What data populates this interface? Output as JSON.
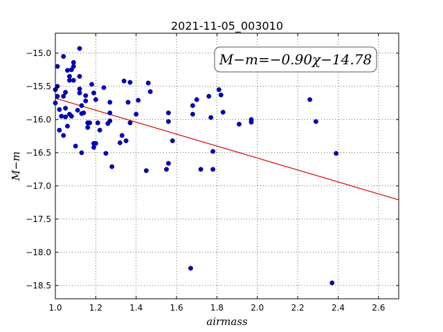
{
  "chart_data": {
    "type": "scatter",
    "title": "2021-11-05_003010",
    "xlabel": "airmass",
    "ylabel": "M−m",
    "xlim": [
      1.0,
      2.7
    ],
    "ylim": [
      -18.7,
      -14.7
    ],
    "y_inverted": true,
    "grid": true,
    "grid_style": "dotted",
    "xticks": [
      1.0,
      1.2,
      1.4,
      1.6,
      1.8,
      2.0,
      2.2,
      2.4,
      2.6
    ],
    "xtick_labels": [
      "1.0",
      "1.2",
      "1.4",
      "1.6",
      "1.8",
      "2.0",
      "2.2",
      "2.4",
      "2.6"
    ],
    "yticks": [
      -15.0,
      -15.5,
      -16.0,
      -16.5,
      -17.0,
      -17.5,
      -18.0,
      -18.5
    ],
    "ytick_labels": [
      "−15.0",
      "−15.5",
      "−16.0",
      "−16.5",
      "−17.0",
      "−17.5",
      "−18.0",
      "−18.5"
    ],
    "annotation": "M−m=−0.90χ−14.78",
    "colors": {
      "points": "#0000cc",
      "fit_line": "#dd0000"
    },
    "fit_line": {
      "slope": -0.9,
      "intercept": -14.78
    },
    "points": [
      [
        1.0,
        -15.55
      ],
      [
        1.0,
        -15.75
      ],
      [
        1.01,
        -15.2
      ],
      [
        1.01,
        -15.5
      ],
      [
        1.01,
        -15.65
      ],
      [
        1.02,
        -15.85
      ],
      [
        1.02,
        -16.16
      ],
      [
        1.03,
        -15.95
      ],
      [
        1.04,
        -15.65
      ],
      [
        1.04,
        -16.24
      ],
      [
        1.04,
        -15.05
      ],
      [
        1.05,
        -15.83
      ],
      [
        1.05,
        -15.96
      ],
      [
        1.05,
        -15.59
      ],
      [
        1.06,
        -16.1
      ],
      [
        1.06,
        -15.26
      ],
      [
        1.07,
        -15.35
      ],
      [
        1.07,
        -15.41
      ],
      [
        1.07,
        -15.92
      ],
      [
        1.08,
        -15.25
      ],
      [
        1.08,
        -15.95
      ],
      [
        1.09,
        -15.14
      ],
      [
        1.09,
        -15.2
      ],
      [
        1.09,
        -15.41
      ],
      [
        1.1,
        -16.4
      ],
      [
        1.11,
        -15.86
      ],
      [
        1.12,
        -14.93
      ],
      [
        1.12,
        -15.35
      ],
      [
        1.12,
        -15.54
      ],
      [
        1.12,
        -15.6
      ],
      [
        1.13,
        -15.79
      ],
      [
        1.13,
        -15.91
      ],
      [
        1.13,
        -16.5
      ],
      [
        1.14,
        -15.9
      ],
      [
        1.15,
        -15.64
      ],
      [
        1.15,
        -15.72
      ],
      [
        1.16,
        -16.05
      ],
      [
        1.16,
        -16.12
      ],
      [
        1.17,
        -16.05
      ],
      [
        1.18,
        -15.47
      ],
      [
        1.19,
        -16.36
      ],
      [
        1.19,
        -16.42
      ],
      [
        1.19,
        -15.6
      ],
      [
        1.2,
        -16.36
      ],
      [
        1.2,
        -15.7
      ],
      [
        1.21,
        -16.05
      ],
      [
        1.22,
        -16.16
      ],
      [
        1.24,
        -15.52
      ],
      [
        1.25,
        -16.51
      ],
      [
        1.26,
        -16.06
      ],
      [
        1.27,
        -15.9
      ],
      [
        1.27,
        -16.02
      ],
      [
        1.27,
        -15.74
      ],
      [
        1.28,
        -16.71
      ],
      [
        1.32,
        -16.35
      ],
      [
        1.33,
        -16.24
      ],
      [
        1.34,
        -15.42
      ],
      [
        1.35,
        -16.32
      ],
      [
        1.36,
        -15.74
      ],
      [
        1.37,
        -16.05
      ],
      [
        1.37,
        -15.44
      ],
      [
        1.4,
        -15.92
      ],
      [
        1.41,
        -15.71
      ],
      [
        1.45,
        -16.77
      ],
      [
        1.46,
        -15.45
      ],
      [
        1.47,
        -15.58
      ],
      [
        1.55,
        -16.75
      ],
      [
        1.56,
        -15.9
      ],
      [
        1.56,
        -16.66
      ],
      [
        1.56,
        -16.03
      ],
      [
        1.58,
        -16.32
      ],
      [
        1.67,
        -18.24
      ],
      [
        1.68,
        -15.92
      ],
      [
        1.68,
        -15.79
      ],
      [
        1.7,
        -15.7
      ],
      [
        1.72,
        -16.75
      ],
      [
        1.76,
        -15.65
      ],
      [
        1.77,
        -15.97
      ],
      [
        1.78,
        -16.48
      ],
      [
        1.78,
        -16.75
      ],
      [
        1.81,
        -15.55
      ],
      [
        1.82,
        -15.63
      ],
      [
        1.83,
        -15.89
      ],
      [
        1.91,
        -16.07
      ],
      [
        1.97,
        -16.0
      ],
      [
        1.97,
        -16.04
      ],
      [
        2.26,
        -15.7
      ],
      [
        2.29,
        -16.03
      ],
      [
        2.37,
        -18.46
      ],
      [
        2.39,
        -16.51
      ]
    ]
  }
}
